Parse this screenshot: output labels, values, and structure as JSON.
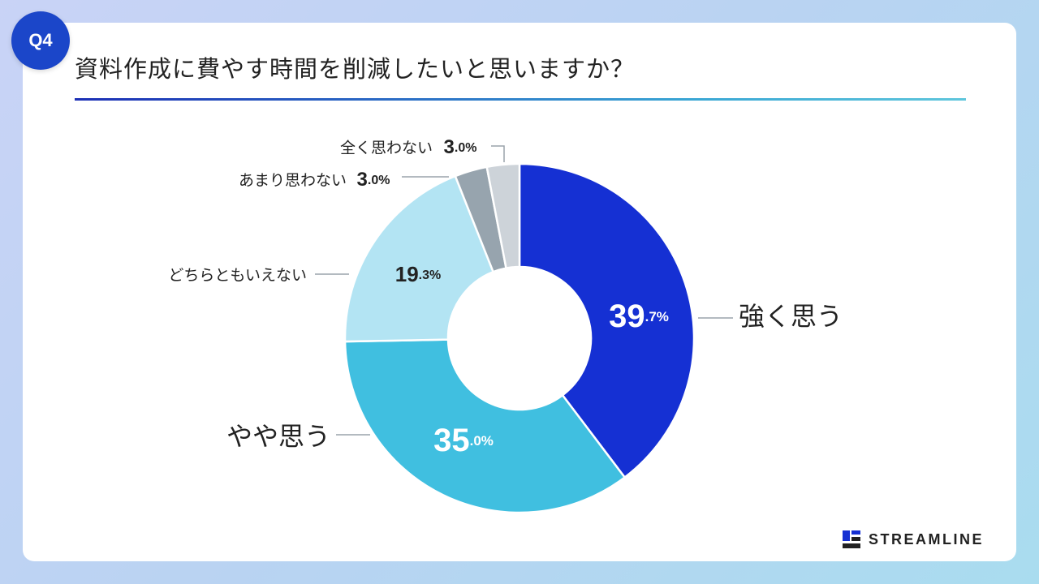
{
  "badge": "Q4",
  "title": "資料作成に費やす時間を削減したいと思いますか？",
  "brand": {
    "name": "STREAMLINE"
  },
  "colors": {
    "strong": "#1530d3",
    "somewhat": "#40bfe0",
    "neutral": "#b3e4f3",
    "not_much": "#97a4ae",
    "not_at_all": "#cdd3d9"
  },
  "chart_data": {
    "type": "pie",
    "donut": true,
    "title": "資料作成に費やす時間を削減したいと思いますか？",
    "slices": [
      {
        "label": "強く思う",
        "value": 39.7,
        "int": "39",
        "dec": ".7%",
        "color": "#1530d3"
      },
      {
        "label": "やや思う",
        "value": 35.0,
        "int": "35",
        "dec": ".0%",
        "color": "#40bfe0"
      },
      {
        "label": "どちらともいえない",
        "value": 19.3,
        "int": "19",
        "dec": ".3%",
        "color": "#b3e4f3"
      },
      {
        "label": "あまり思わない",
        "value": 3.0,
        "int": "3",
        "dec": ".0%",
        "color": "#97a4ae"
      },
      {
        "label": "全く思わない",
        "value": 3.0,
        "int": "3",
        "dec": ".0%",
        "color": "#cdd3d9"
      }
    ]
  }
}
